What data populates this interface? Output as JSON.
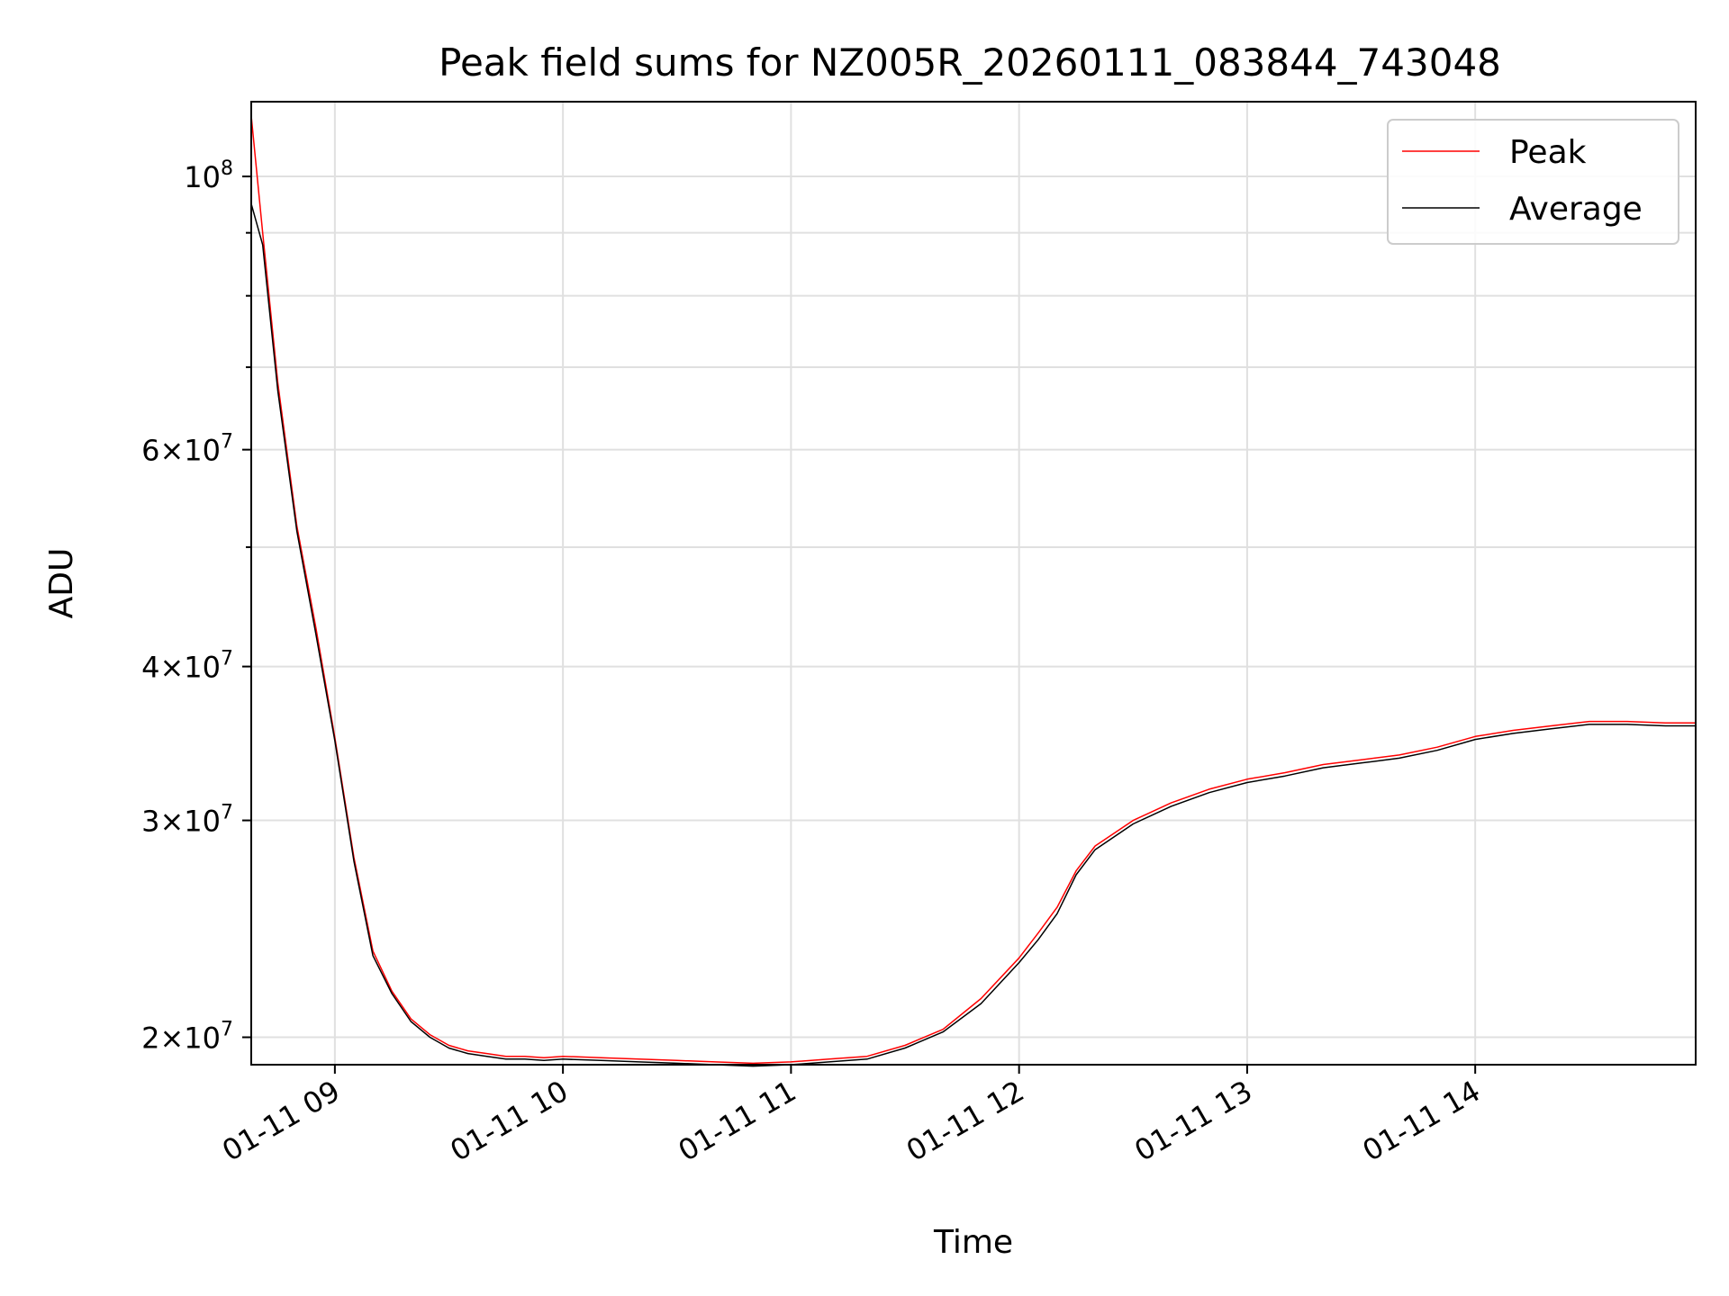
{
  "chart_data": {
    "type": "line",
    "title": "Peak field sums for NZ005R_20260111_083844_743048",
    "xlabel": "Time",
    "ylabel": "ADU",
    "yscale": "log",
    "grid": true,
    "legend_position": "top-right",
    "xlim": [
      "2026-01-11 08:38",
      "2026-01-11 14:58"
    ],
    "ylim": [
      19000000,
      115000000
    ],
    "x_ticks": [
      {
        "value": "2026-01-11 09:00",
        "label": "01-11 09"
      },
      {
        "value": "2026-01-11 10:00",
        "label": "01-11 10"
      },
      {
        "value": "2026-01-11 11:00",
        "label": "01-11 11"
      },
      {
        "value": "2026-01-11 12:00",
        "label": "01-11 12"
      },
      {
        "value": "2026-01-11 13:00",
        "label": "01-11 13"
      },
      {
        "value": "2026-01-11 14:00",
        "label": "01-11 14"
      }
    ],
    "y_ticks_major": [
      {
        "value": 20000000,
        "base": "2",
        "exp": "7"
      },
      {
        "value": 30000000,
        "base": "3",
        "exp": "7"
      },
      {
        "value": 40000000,
        "base": "4",
        "exp": "7"
      },
      {
        "value": 60000000,
        "base": "6",
        "exp": "7"
      },
      {
        "value": 100000000,
        "base": "",
        "exp": "8"
      }
    ],
    "y_ticks_minor": [
      50000000,
      70000000,
      80000000,
      90000000
    ],
    "series": [
      {
        "name": "Peak",
        "color": "#ff0000",
        "x": [
          "2026-01-11 08:38",
          "2026-01-11 08:41",
          "2026-01-11 08:45",
          "2026-01-11 08:50",
          "2026-01-11 08:55",
          "2026-01-11 09:00",
          "2026-01-11 09:05",
          "2026-01-11 09:10",
          "2026-01-11 09:15",
          "2026-01-11 09:20",
          "2026-01-11 09:25",
          "2026-01-11 09:30",
          "2026-01-11 09:35",
          "2026-01-11 09:40",
          "2026-01-11 09:45",
          "2026-01-11 09:50",
          "2026-01-11 09:55",
          "2026-01-11 10:00",
          "2026-01-11 10:10",
          "2026-01-11 10:20",
          "2026-01-11 10:30",
          "2026-01-11 10:40",
          "2026-01-11 10:50",
          "2026-01-11 11:00",
          "2026-01-11 11:10",
          "2026-01-11 11:20",
          "2026-01-11 11:30",
          "2026-01-11 11:40",
          "2026-01-11 11:50",
          "2026-01-11 12:00",
          "2026-01-11 12:05",
          "2026-01-11 12:10",
          "2026-01-11 12:15",
          "2026-01-11 12:20",
          "2026-01-11 12:30",
          "2026-01-11 12:40",
          "2026-01-11 12:50",
          "2026-01-11 13:00",
          "2026-01-11 13:10",
          "2026-01-11 13:20",
          "2026-01-11 13:30",
          "2026-01-11 13:40",
          "2026-01-11 13:50",
          "2026-01-11 14:00",
          "2026-01-11 14:10",
          "2026-01-11 14:20",
          "2026-01-11 14:30",
          "2026-01-11 14:40",
          "2026-01-11 14:50",
          "2026-01-11 14:58"
        ],
        "values": [
          112000000,
          90000000,
          68000000,
          52000000,
          43000000,
          35000000,
          28000000,
          23500000,
          21800000,
          20700000,
          20100000,
          19700000,
          19500000,
          19400000,
          19300000,
          19300000,
          19250000,
          19300000,
          19250000,
          19200000,
          19150000,
          19100000,
          19050000,
          19100000,
          19200000,
          19300000,
          19700000,
          20300000,
          21500000,
          23200000,
          24300000,
          25500000,
          27300000,
          28600000,
          30000000,
          31000000,
          31800000,
          32400000,
          32800000,
          33300000,
          33600000,
          33900000,
          34400000,
          35100000,
          35500000,
          35800000,
          36100000,
          36100000,
          36000000,
          36000000
        ]
      },
      {
        "name": "Average",
        "color": "#000000",
        "x": [
          "2026-01-11 08:38",
          "2026-01-11 08:41",
          "2026-01-11 08:45",
          "2026-01-11 08:50",
          "2026-01-11 08:55",
          "2026-01-11 09:00",
          "2026-01-11 09:05",
          "2026-01-11 09:10",
          "2026-01-11 09:15",
          "2026-01-11 09:20",
          "2026-01-11 09:25",
          "2026-01-11 09:30",
          "2026-01-11 09:35",
          "2026-01-11 09:40",
          "2026-01-11 09:45",
          "2026-01-11 09:50",
          "2026-01-11 09:55",
          "2026-01-11 10:00",
          "2026-01-11 10:10",
          "2026-01-11 10:20",
          "2026-01-11 10:30",
          "2026-01-11 10:40",
          "2026-01-11 10:50",
          "2026-01-11 11:00",
          "2026-01-11 11:10",
          "2026-01-11 11:20",
          "2026-01-11 11:30",
          "2026-01-11 11:40",
          "2026-01-11 11:50",
          "2026-01-11 12:00",
          "2026-01-11 12:05",
          "2026-01-11 12:10",
          "2026-01-11 12:15",
          "2026-01-11 12:20",
          "2026-01-11 12:30",
          "2026-01-11 12:40",
          "2026-01-11 12:50",
          "2026-01-11 13:00",
          "2026-01-11 13:10",
          "2026-01-11 13:20",
          "2026-01-11 13:30",
          "2026-01-11 13:40",
          "2026-01-11 13:50",
          "2026-01-11 14:00",
          "2026-01-11 14:10",
          "2026-01-11 14:20",
          "2026-01-11 14:30",
          "2026-01-11 14:40",
          "2026-01-11 14:50",
          "2026-01-11 14:58"
        ],
        "values": [
          95000000,
          88000000,
          67000000,
          51500000,
          42500000,
          34800000,
          27800000,
          23300000,
          21700000,
          20600000,
          20000000,
          19600000,
          19400000,
          19300000,
          19200000,
          19200000,
          19150000,
          19200000,
          19150000,
          19100000,
          19050000,
          19000000,
          18950000,
          19000000,
          19100000,
          19200000,
          19600000,
          20200000,
          21300000,
          23000000,
          24000000,
          25200000,
          27100000,
          28400000,
          29800000,
          30800000,
          31600000,
          32200000,
          32600000,
          33100000,
          33400000,
          33700000,
          34200000,
          34900000,
          35300000,
          35600000,
          35900000,
          35900000,
          35800000,
          35800000
        ]
      }
    ]
  }
}
